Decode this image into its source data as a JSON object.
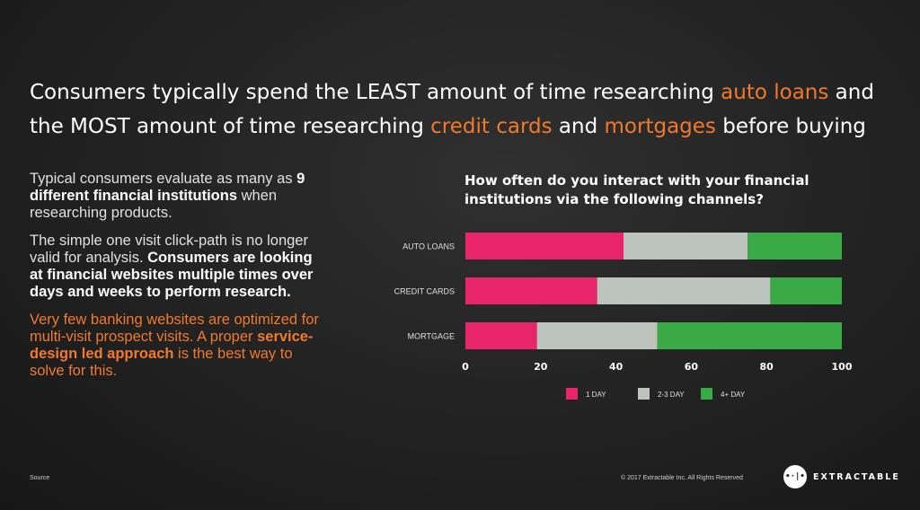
{
  "headline": {
    "p1": "Consumers typically spend the LEAST amount of time researching ",
    "h1": "auto loans",
    "p2": " and the MOST amount of time researching ",
    "h2": "credit cards",
    "p3": " and ",
    "h3": "mortgages",
    "p4": " before buying"
  },
  "left": {
    "para1_a": "Typical consumers evaluate as many as ",
    "para1_b": "9 different financial institutions",
    "para1_c": " when researching products.",
    "para2_a": "The simple one visit click-path is no longer valid for analysis.  ",
    "para2_b": "Consumers are looking at financial websites multiple times over days and weeks to perform research.",
    "para3_a": "Very few banking websites are optimized for multi-visit prospect visits. A proper ",
    "para3_b": "service-design led approach",
    "para3_c": " is the best way to solve for this."
  },
  "chart_data": {
    "type": "bar",
    "orientation": "horizontal",
    "stacked": true,
    "title": "How often do you interact with your financial institutions via the following channels?",
    "categories": [
      "AUTO LOANS",
      "CREDIT CARDS",
      "MORTGAGE"
    ],
    "series": [
      {
        "name": "1 DAY",
        "color": "#e8246a",
        "values": [
          42,
          35,
          19
        ]
      },
      {
        "name": "2-3 DAY",
        "color": "#bdc3bd",
        "values": [
          33,
          46,
          32
        ]
      },
      {
        "name": "4+ DAY",
        "color": "#3aaa46",
        "values": [
          25,
          19,
          49
        ]
      }
    ],
    "xlim": [
      0,
      100
    ],
    "xticks": [
      0,
      20,
      40,
      60,
      80,
      100
    ],
    "grid": false,
    "legend": "bottom"
  },
  "footer": {
    "source": "Source",
    "copyright": "© 2017 Extractable Inc. All Rights Reserved",
    "logo_mark": "•·|•",
    "logo_text": "EXTRACTABLE"
  }
}
